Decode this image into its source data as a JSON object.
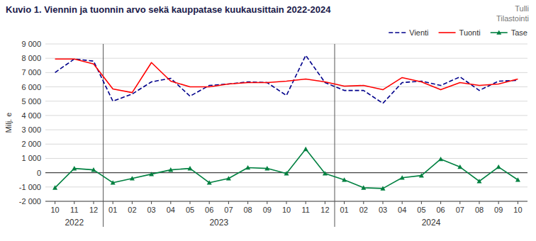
{
  "chart_data": {
    "type": "line",
    "title": "Kuvio 1. Viennin ja tuonnin arvo sekä kauppatase kuukausittain  2022-2024",
    "watermark": [
      "Tulli",
      "Tilastointi"
    ],
    "y_label": "Milj. e",
    "categories": [
      "10",
      "11",
      "12",
      "01",
      "02",
      "03",
      "04",
      "05",
      "06",
      "07",
      "08",
      "09",
      "10",
      "11",
      "12",
      "01",
      "02",
      "03",
      "04",
      "05",
      "06",
      "07",
      "08",
      "09",
      "10"
    ],
    "annotations": [
      {
        "text": "2022",
        "from": 0,
        "to": 2
      },
      {
        "text": "2023",
        "from": 3,
        "to": 14
      },
      {
        "text": "2024",
        "from": 15,
        "to": 24
      }
    ],
    "series": [
      {
        "name": "Vienti",
        "color": "#00008B",
        "line_style": "dashed",
        "values": [
          7000,
          7950,
          7800,
          5000,
          5500,
          6350,
          6600,
          5350,
          6100,
          6200,
          6350,
          6300,
          5400,
          8200,
          6300,
          5750,
          5750,
          4850,
          6300,
          6400,
          6100,
          6700,
          5750,
          6400,
          6450
        ]
      },
      {
        "name": "Tuonti",
        "color": "#FF0000",
        "line_style": "solid",
        "values": [
          7950,
          7950,
          7600,
          5850,
          5600,
          7700,
          6400,
          6000,
          6000,
          6200,
          6300,
          6300,
          6400,
          6550,
          6350,
          6050,
          6100,
          5800,
          6650,
          6350,
          5800,
          6300,
          6100,
          6200,
          6550
        ]
      },
      {
        "name": "Tase",
        "color": "#008040",
        "line_style": "solid",
        "marker": "triangle",
        "values": [
          -1050,
          300,
          200,
          -700,
          -400,
          -100,
          200,
          300,
          -700,
          -400,
          350,
          300,
          -50,
          1650,
          -50,
          -500,
          -1050,
          -1100,
          -350,
          -200,
          950,
          400,
          -600,
          400,
          -500
        ]
      }
    ],
    "ylim": [
      -2000,
      9000
    ],
    "yticks": [
      {
        "value": -2000,
        "label": "-2 000"
      },
      {
        "value": -1000,
        "label": "-1 000"
      },
      0,
      {
        "value": 1000,
        "label": "1 000"
      },
      {
        "value": 2000,
        "label": "2 000"
      },
      {
        "value": 3000,
        "label": "3 000"
      },
      {
        "value": 4000,
        "label": "4 000"
      },
      {
        "value": 5000,
        "label": "5 000"
      },
      {
        "value": 6000,
        "label": "6 000"
      },
      {
        "value": 7000,
        "label": "7 000"
      },
      {
        "value": 8000,
        "label": "8 000"
      },
      {
        "value": 9000,
        "label": "9 000"
      }
    ],
    "grid": true,
    "legend": "upper right"
  }
}
